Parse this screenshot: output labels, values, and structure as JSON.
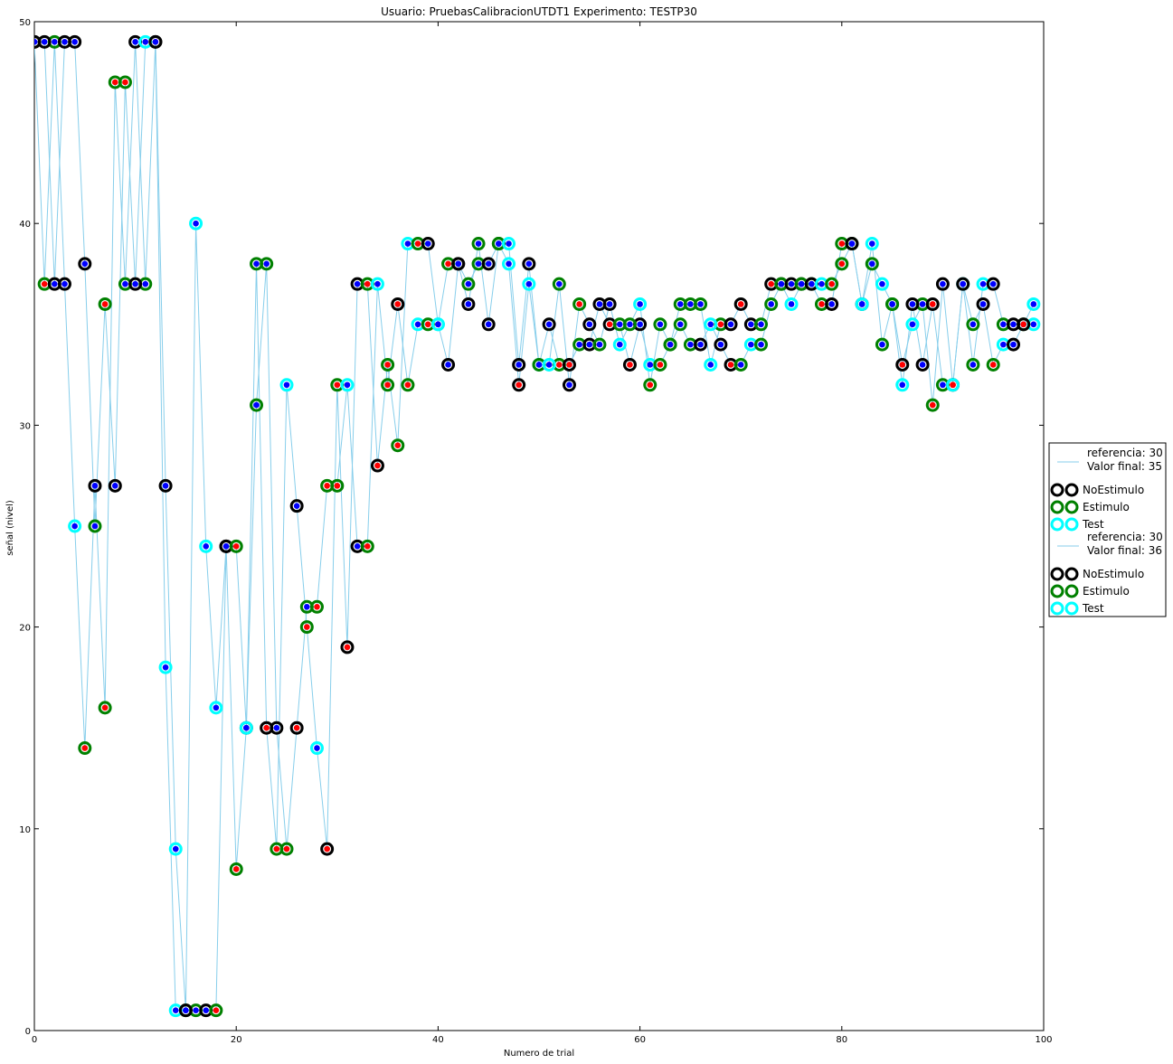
{
  "chart_data": {
    "type": "scatter",
    "title": "Usuario: PruebasCalibracionUTDT1 Experimento: TESTP30",
    "xlabel": "Numero de trial",
    "ylabel": "señal (nivel)",
    "xlim": [
      0,
      100
    ],
    "ylim": [
      0,
      50
    ],
    "x_ticks": [
      0,
      20,
      40,
      60,
      80,
      100
    ],
    "y_ticks": [
      0,
      10,
      20,
      30,
      40,
      50
    ],
    "grid": false,
    "legend_position": "right-outside",
    "colors": {
      "line": "#87CEEB",
      "NoEstimulo": "#000000",
      "Estimulo": "#008000",
      "Test": "#00FFFF",
      "dot_hit": "#0000FF",
      "dot_miss": "#FF0000"
    },
    "legend": [
      {
        "kind": "line",
        "label_lines": [
          "referencia: 30",
          "Valor final: 35"
        ]
      },
      {
        "kind": "marker",
        "category": "NoEstimulo",
        "label": "NoEstimulo"
      },
      {
        "kind": "marker",
        "category": "Estimulo",
        "label": "Estimulo"
      },
      {
        "kind": "marker",
        "category": "Test",
        "label": "Test"
      },
      {
        "kind": "line",
        "label_lines": [
          "referencia: 30",
          "Valor final: 36"
        ]
      },
      {
        "kind": "marker",
        "category": "NoEstimulo",
        "label": "NoEstimulo"
      },
      {
        "kind": "marker",
        "category": "Estimulo",
        "label": "Estimulo"
      },
      {
        "kind": "marker",
        "category": "Test",
        "label": "Test"
      }
    ],
    "series": [
      {
        "final_value": 35,
        "values": [
          49,
          37,
          49,
          37,
          25,
          14,
          27,
          16,
          47,
          37,
          49,
          37,
          49,
          18,
          1,
          1,
          1,
          1,
          1,
          24,
          8,
          15,
          38,
          15,
          9,
          32,
          26,
          20,
          14,
          9,
          32,
          19,
          37,
          37,
          28,
          33,
          29,
          39,
          39,
          39,
          35,
          38,
          38,
          36,
          39,
          35,
          39,
          38,
          32,
          37,
          33,
          35,
          33,
          33,
          34,
          34,
          36,
          35,
          35,
          33,
          35,
          33,
          33,
          34,
          36,
          36,
          36,
          33,
          35,
          35,
          36,
          35,
          35,
          37,
          37,
          36,
          37,
          37,
          36,
          36,
          39,
          39,
          36,
          38,
          37,
          36,
          33,
          35,
          36,
          31,
          37,
          32,
          37,
          35,
          36,
          33,
          34,
          34,
          35,
          35
        ],
        "categories": [
          "N",
          "E",
          "E",
          "N",
          "T",
          "E",
          "N",
          "E",
          "E",
          "E",
          "N",
          "E",
          "N",
          "T",
          "T",
          "E",
          "E",
          "N",
          "E",
          "N",
          "E",
          "N",
          "E",
          "N",
          "E",
          "T",
          "N",
          "E",
          "T",
          "N",
          "E",
          "N",
          "N",
          "E",
          "N",
          "E",
          "E",
          "T",
          "E",
          "N",
          "T",
          "E",
          "N",
          "N",
          "E",
          "N",
          "E",
          "T",
          "N",
          "T",
          "T",
          "N",
          "E",
          "N",
          "E",
          "N",
          "N",
          "N",
          "E",
          "N",
          "N",
          "T",
          "E",
          "E",
          "E",
          "E",
          "E",
          "T",
          "E",
          "N",
          "N",
          "N",
          "E",
          "N",
          "N",
          "T",
          "N",
          "E",
          "E",
          "N",
          "E",
          "E",
          "N",
          "E",
          "T",
          "E",
          "N",
          "T",
          "E",
          "E",
          "N",
          "N",
          "T",
          "E",
          "N",
          "E",
          "T",
          "N",
          "E",
          "T"
        ],
        "responses": [
          "h",
          "m",
          "h",
          "h",
          "h",
          "m",
          "h",
          "m",
          "m",
          "h",
          "h",
          "h",
          "m",
          "h",
          "h",
          "h",
          "h",
          "h",
          "m",
          "h",
          "m",
          "h",
          "h",
          "m",
          "m",
          "h",
          "h",
          "m",
          "h",
          "m",
          "m",
          "m",
          "h",
          "m",
          "m",
          "m",
          "m",
          "h",
          "m",
          "h",
          "h",
          "m",
          "h",
          "h",
          "h",
          "h",
          "h",
          "h",
          "m",
          "h",
          "h",
          "h",
          "m",
          "m",
          "h",
          "h",
          "h",
          "m",
          "h",
          "m",
          "h",
          "h",
          "m",
          "m",
          "h",
          "h",
          "h",
          "h",
          "m",
          "h",
          "m",
          "h",
          "h",
          "m",
          "h",
          "h",
          "h",
          "h",
          "m",
          "h",
          "m",
          "h",
          "h",
          "h",
          "h",
          "h",
          "m",
          "h",
          "h",
          "m",
          "h",
          "m",
          "h",
          "h",
          "h",
          "m",
          "h",
          "h",
          "h",
          "h"
        ]
      },
      {
        "final_value": 36,
        "values": [
          49,
          49,
          37,
          49,
          49,
          38,
          25,
          36,
          27,
          47,
          37,
          49,
          49,
          27,
          9,
          1,
          40,
          24,
          16,
          24,
          24,
          15,
          31,
          38,
          15,
          9,
          15,
          21,
          21,
          27,
          27,
          32,
          24,
          24,
          37,
          32,
          36,
          32,
          35,
          35,
          35,
          33,
          38,
          37,
          38,
          38,
          39,
          39,
          33,
          38,
          33,
          33,
          37,
          32,
          36,
          35,
          34,
          36,
          34,
          35,
          36,
          32,
          35,
          34,
          35,
          34,
          34,
          35,
          34,
          33,
          33,
          34,
          34,
          36,
          37,
          37,
          37,
          37,
          37,
          37,
          38,
          39,
          36,
          39,
          34,
          36,
          32,
          36,
          33,
          36,
          32,
          32,
          37,
          33,
          37,
          37,
          35,
          35,
          35,
          36
        ],
        "categories": [
          "N",
          "N",
          "N",
          "N",
          "N",
          "N",
          "E",
          "E",
          "N",
          "E",
          "N",
          "T",
          "N",
          "N",
          "T",
          "N",
          "T",
          "T",
          "T",
          "N",
          "E",
          "T",
          "E",
          "E",
          "N",
          "E",
          "N",
          "E",
          "E",
          "E",
          "E",
          "T",
          "N",
          "E",
          "T",
          "E",
          "N",
          "E",
          "T",
          "E",
          "T",
          "N",
          "N",
          "E",
          "E",
          "N",
          "E",
          "T",
          "N",
          "N",
          "E",
          "T",
          "E",
          "N",
          "E",
          "N",
          "E",
          "N",
          "T",
          "E",
          "T",
          "E",
          "E",
          "E",
          "E",
          "E",
          "N",
          "T",
          "N",
          "N",
          "E",
          "T",
          "E",
          "E",
          "E",
          "N",
          "E",
          "N",
          "T",
          "E",
          "E",
          "N",
          "T",
          "T",
          "E",
          "E",
          "T",
          "N",
          "N",
          "N",
          "E",
          "T",
          "N",
          "E",
          "T",
          "N",
          "E",
          "N",
          "N",
          "T"
        ],
        "responses": [
          "h",
          "h",
          "h",
          "h",
          "h",
          "h",
          "h",
          "m",
          "h",
          "m",
          "h",
          "h",
          "h",
          "h",
          "h",
          "h",
          "h",
          "h",
          "h",
          "h",
          "m",
          "h",
          "h",
          "h",
          "h",
          "m",
          "m",
          "h",
          "m",
          "m",
          "m",
          "h",
          "h",
          "m",
          "h",
          "m",
          "m",
          "m",
          "h",
          "m",
          "h",
          "h",
          "h",
          "h",
          "h",
          "h",
          "h",
          "h",
          "h",
          "h",
          "h",
          "h",
          "h",
          "h",
          "m",
          "h",
          "h",
          "h",
          "h",
          "h",
          "h",
          "m",
          "h",
          "h",
          "h",
          "h",
          "h",
          "h",
          "h",
          "m",
          "h",
          "h",
          "h",
          "h",
          "h",
          "h",
          "h",
          "h",
          "h",
          "m",
          "m",
          "h",
          "h",
          "h",
          "h",
          "h",
          "h",
          "h",
          "h",
          "m",
          "h",
          "m",
          "h",
          "h",
          "h",
          "h",
          "h",
          "h",
          "m",
          "h"
        ]
      }
    ]
  }
}
